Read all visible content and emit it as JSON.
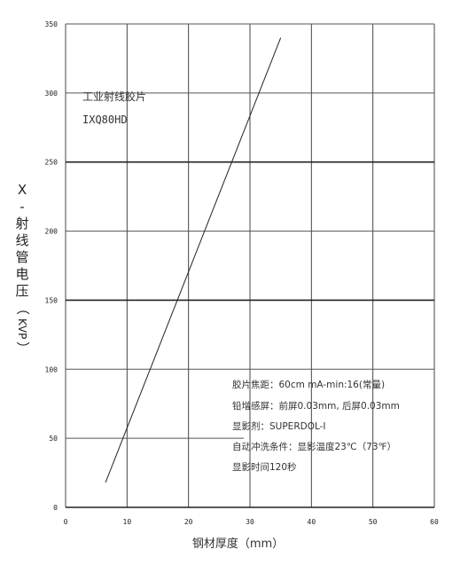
{
  "chart_data": {
    "type": "line",
    "title": "",
    "xlabel": "钢材厚度（mm）",
    "ylabel": [
      "X",
      "-",
      "射",
      "线",
      "管",
      "电",
      "压",
      "（",
      "KVP",
      "）"
    ],
    "xlim": [
      0,
      60
    ],
    "ylim": [
      0,
      350
    ],
    "xticks": [
      0,
      10,
      20,
      30,
      40,
      50,
      60
    ],
    "yticks": [
      0,
      50,
      100,
      150,
      200,
      250,
      300,
      350
    ],
    "grid": true,
    "series": [
      {
        "x": [
          6.5,
          35
        ],
        "y": [
          18,
          340
        ]
      }
    ],
    "product": [
      "工业射线胶片",
      "IXQ80HD"
    ],
    "notes": [
      "胶片焦距：60cm   mA-min:16(常量)",
      "铅增感屏：前屏0.03mm, 后屏0.03mm",
      "显影剂：SUPERDOL-I",
      "自动冲洗条件：显影温度23℃（73℉）",
      "显影时间120秒"
    ]
  }
}
